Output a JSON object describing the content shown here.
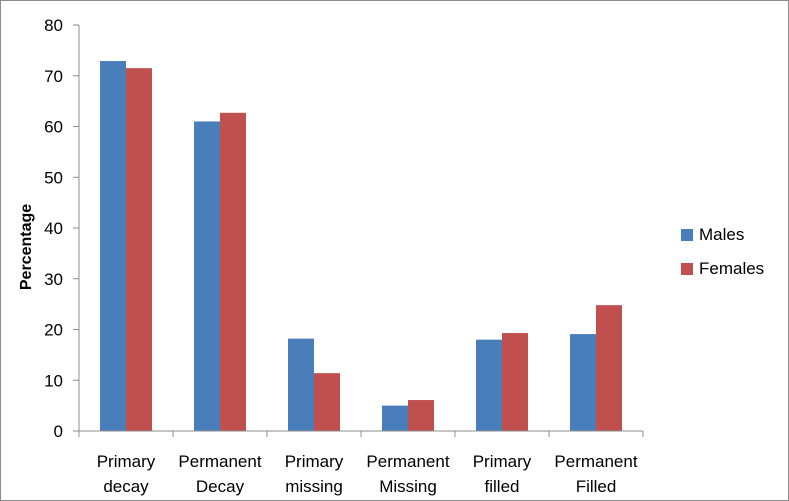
{
  "chart_data": {
    "type": "bar",
    "title": "",
    "xlabel": "",
    "ylabel": "Percentage",
    "ylim": [
      0,
      80
    ],
    "yticks": [
      0,
      10,
      20,
      30,
      40,
      50,
      60,
      70,
      80
    ],
    "grid": false,
    "legend_position": "right",
    "categories": [
      [
        "Primary",
        "decay"
      ],
      [
        "Permanent",
        "Decay"
      ],
      [
        "Primary",
        "missing"
      ],
      [
        "Permanent",
        "Missing"
      ],
      [
        "Primary",
        "filled"
      ],
      [
        "Permanent",
        "Filled"
      ]
    ],
    "series": [
      {
        "name": "Males",
        "color": "#4a7ebb",
        "values": [
          72.9,
          61,
          18.2,
          5,
          18,
          19.1
        ]
      },
      {
        "name": "Females",
        "color": "#c0504d",
        "values": [
          71.5,
          62.7,
          11.4,
          6.1,
          19.3,
          24.8
        ]
      }
    ]
  }
}
